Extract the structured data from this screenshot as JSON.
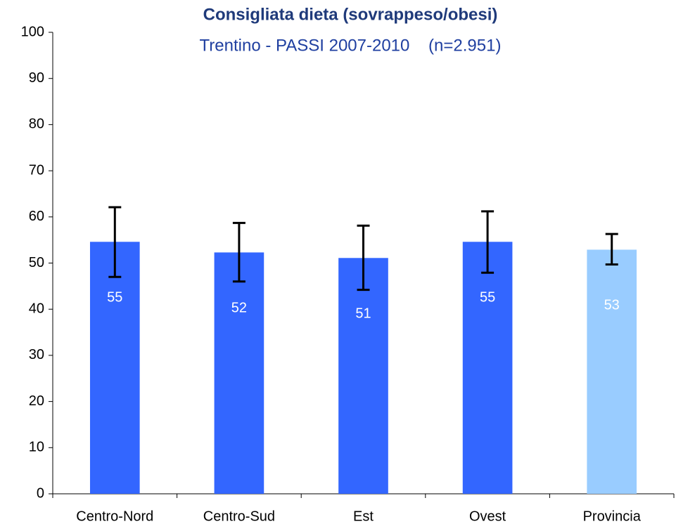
{
  "chart_data": {
    "type": "bar",
    "title": "Consigliata dieta (sovrappeso/obesi)",
    "subtitle": "Trentino - PASSI 2007-2010    (n=2.951)",
    "categories": [
      "Centro-Nord",
      "Centro-Sud",
      "Est",
      "Ovest",
      "Provincia"
    ],
    "values": [
      54.6,
      52.3,
      51.1,
      54.6,
      52.9
    ],
    "value_labels": [
      "55",
      "52",
      "51",
      "55",
      "53"
    ],
    "ci_low": [
      47,
      46,
      44.2,
      47.9,
      49.7
    ],
    "ci_high": [
      62.1,
      58.7,
      58.1,
      61.2,
      56.3
    ],
    "colors": [
      "#3366ff",
      "#3366ff",
      "#3366ff",
      "#3366ff",
      "#99ccff"
    ],
    "ylim": [
      0,
      100
    ],
    "yticks": [
      0,
      10,
      20,
      30,
      40,
      50,
      60,
      70,
      80,
      90,
      100
    ],
    "grid": false
  }
}
